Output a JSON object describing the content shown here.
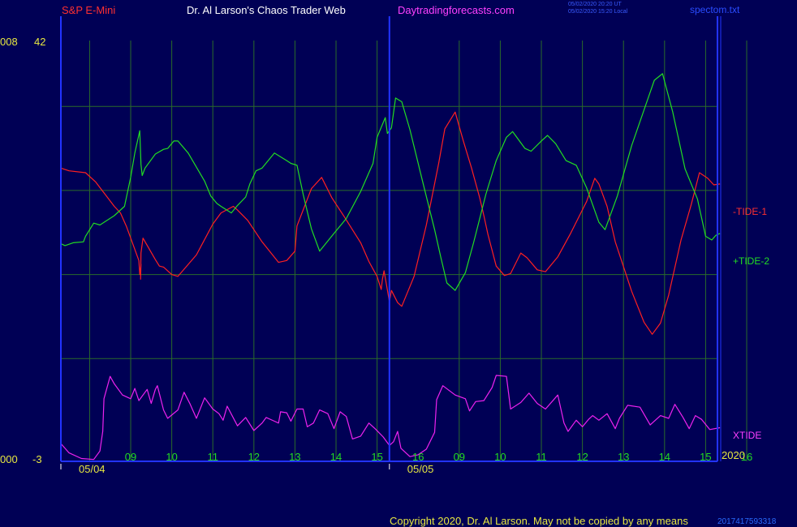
{
  "header": {
    "instrument": "S&P E-Mini",
    "site": "Dr. Al Larson's Chaos Trader Web",
    "url": "Daytradingforecasts.com",
    "timestamp_ut": "05/02/2020 20:20 UT",
    "timestamp_local": "05/02/2020 15:20 Local",
    "file": "spectom.txt"
  },
  "left_axis": {
    "top_code": "008",
    "top_value": "42",
    "bottom_code": "000",
    "bottom_value": "-3"
  },
  "footer": {
    "year": "2020",
    "copyright": "Copyright 2020, Dr. Al Larson. May not be copied by any means",
    "overflow_text": "2017417593318"
  },
  "colors": {
    "background": "#000055",
    "frame": "#2233ff",
    "grid": "#2a6b2a",
    "tide1": "#ff2020",
    "tide2": "#22dd22",
    "xtide": "#ee22ee",
    "label_yellow": "#e8e840",
    "label_red": "#ff3030",
    "label_magenta": "#ff40ff"
  },
  "chart_data": {
    "type": "line",
    "x_tick_labels": [
      {
        "x": 1,
        "label": "09"
      },
      {
        "x": 2,
        "label": "10"
      },
      {
        "x": 3,
        "label": "11"
      },
      {
        "x": 4,
        "label": "12"
      },
      {
        "x": 5,
        "label": "13"
      },
      {
        "x": 6,
        "label": "14"
      },
      {
        "x": 7,
        "label": "15"
      },
      {
        "x": 8,
        "label": "16"
      },
      {
        "x": 9,
        "label": "09"
      },
      {
        "x": 10,
        "label": "10"
      },
      {
        "x": 11,
        "label": "11"
      },
      {
        "x": 12,
        "label": "12"
      },
      {
        "x": 13,
        "label": "13"
      },
      {
        "x": 14,
        "label": "14"
      },
      {
        "x": 15,
        "label": "15"
      },
      {
        "x": 16,
        "label": "16"
      }
    ],
    "date_labels": [
      {
        "x": 0,
        "label": "05/04"
      },
      {
        "x": 8,
        "label": "05/05"
      }
    ],
    "xlim": [
      0,
      16.1
    ],
    "ylim": [
      -3,
      42
    ],
    "grid": true,
    "series": [
      {
        "name": "-TIDE-1",
        "color": "#ff2020",
        "points": [
          [
            0,
            28.4
          ],
          [
            0.2,
            28.1
          ],
          [
            0.6,
            27.9
          ],
          [
            0.85,
            26.9
          ],
          [
            1.3,
            24.3
          ],
          [
            1.45,
            23.6
          ],
          [
            1.6,
            22.1
          ],
          [
            1.9,
            18.5
          ],
          [
            1.92,
            17
          ],
          [
            1.95,
            18.1
          ],
          [
            1.94,
            16.5
          ],
          [
            1.95,
            19.3
          ],
          [
            2,
            20.9
          ],
          [
            2.3,
            18.6
          ],
          [
            2.4,
            17.9
          ],
          [
            2.5,
            17.8
          ],
          [
            2.7,
            17
          ],
          [
            2.85,
            16.8
          ],
          [
            3.3,
            19.1
          ],
          [
            3.7,
            22.4
          ],
          [
            3.9,
            23.6
          ],
          [
            4.2,
            24.3
          ],
          [
            4.3,
            23.9
          ],
          [
            4.55,
            22.8
          ],
          [
            4.9,
            20.5
          ],
          [
            5.3,
            18.3
          ],
          [
            5.5,
            18.5
          ],
          [
            5.7,
            19.5
          ],
          [
            5.75,
            22.2
          ],
          [
            6.1,
            26.2
          ],
          [
            6.35,
            27.4
          ],
          [
            6.6,
            25.2
          ],
          [
            6.9,
            23.2
          ],
          [
            7.3,
            20.4
          ],
          [
            7.5,
            18.4
          ],
          [
            7.7,
            16.8
          ],
          [
            7.8,
            15.4
          ],
          [
            7.83,
            16.5
          ],
          [
            7.87,
            17.4
          ],
          [
            8,
            14.1
          ],
          [
            8.05,
            15.3
          ],
          [
            8.2,
            14
          ],
          [
            8.3,
            13.6
          ],
          [
            8.6,
            16.8
          ],
          [
            8.9,
            22.3
          ],
          [
            9.2,
            28.9
          ],
          [
            9.35,
            32.6
          ],
          [
            9.6,
            34.4
          ],
          [
            9.8,
            31.3
          ],
          [
            10,
            28.4
          ],
          [
            10.2,
            25.2
          ],
          [
            10.3,
            23.3
          ],
          [
            10.4,
            21.3
          ],
          [
            10.6,
            17.9
          ],
          [
            10.8,
            16.9
          ],
          [
            10.95,
            17.1
          ],
          [
            11.2,
            19.3
          ],
          [
            11.35,
            18.8
          ],
          [
            11.6,
            17.5
          ],
          [
            11.8,
            17.3
          ],
          [
            12.1,
            18.9
          ],
          [
            12.4,
            21.3
          ],
          [
            12.8,
            24.8
          ],
          [
            13,
            27.3
          ],
          [
            13.1,
            26.7
          ],
          [
            13.3,
            24.3
          ],
          [
            13.5,
            20.5
          ],
          [
            13.9,
            15.2
          ],
          [
            14.2,
            11.9
          ],
          [
            14.4,
            10.6
          ],
          [
            14.6,
            11.8
          ],
          [
            14.8,
            14.8
          ],
          [
            15.1,
            20.7
          ],
          [
            15.35,
            24.5
          ],
          [
            15.55,
            27.9
          ],
          [
            15.75,
            27.3
          ],
          [
            15.9,
            26.6
          ],
          [
            16.05,
            26.7
          ]
        ]
      },
      {
        "name": "+TIDE-2",
        "color": "#22dd22",
        "points": [
          [
            0,
            20.3
          ],
          [
            0.1,
            20.1
          ],
          [
            0.3,
            20.4
          ],
          [
            0.55,
            20.5
          ],
          [
            0.6,
            21.1
          ],
          [
            0.8,
            22.5
          ],
          [
            0.95,
            22.3
          ],
          [
            1.3,
            23.3
          ],
          [
            1.55,
            24.3
          ],
          [
            1.7,
            27.4
          ],
          [
            1.8,
            30
          ],
          [
            1.92,
            32.4
          ],
          [
            1.95,
            28.8
          ],
          [
            1.98,
            27.6
          ],
          [
            2.05,
            28.4
          ],
          [
            2.3,
            29.9
          ],
          [
            2.5,
            30.4
          ],
          [
            2.6,
            30.5
          ],
          [
            2.75,
            31.3
          ],
          [
            2.85,
            31.3
          ],
          [
            3.1,
            30
          ],
          [
            3.5,
            27
          ],
          [
            3.65,
            25.4
          ],
          [
            3.8,
            24.6
          ],
          [
            3.9,
            24.3
          ],
          [
            4.15,
            23.6
          ],
          [
            4.3,
            24.4
          ],
          [
            4.5,
            25.3
          ],
          [
            4.6,
            26.7
          ],
          [
            4.75,
            28.1
          ],
          [
            4.9,
            28.4
          ],
          [
            5.2,
            30
          ],
          [
            5.5,
            29.2
          ],
          [
            5.6,
            28.9
          ],
          [
            5.75,
            28.7
          ],
          [
            5.9,
            25.6
          ],
          [
            6.1,
            21.9
          ],
          [
            6.3,
            19.5
          ],
          [
            6.65,
            21.4
          ],
          [
            6.95,
            23
          ],
          [
            7.3,
            25.9
          ],
          [
            7.6,
            28.9
          ],
          [
            7.7,
            31.7
          ],
          [
            7.9,
            33.8
          ],
          [
            7.95,
            32.1
          ],
          [
            8.05,
            32.7
          ],
          [
            8.15,
            35.9
          ],
          [
            8.3,
            35.5
          ],
          [
            8.5,
            32.5
          ],
          [
            8.8,
            27.1
          ],
          [
            9.1,
            21.8
          ],
          [
            9.25,
            18.9
          ],
          [
            9.4,
            16.1
          ],
          [
            9.6,
            15.3
          ],
          [
            9.85,
            17.2
          ],
          [
            10.05,
            20.4
          ],
          [
            10.35,
            25.6
          ],
          [
            10.6,
            29.2
          ],
          [
            10.85,
            31.7
          ],
          [
            11,
            32.3
          ],
          [
            11.3,
            30.5
          ],
          [
            11.45,
            30.2
          ],
          [
            11.7,
            31.3
          ],
          [
            11.85,
            31.9
          ],
          [
            12.05,
            31
          ],
          [
            12.3,
            29.2
          ],
          [
            12.55,
            28.7
          ],
          [
            12.8,
            26.3
          ],
          [
            13.1,
            22.6
          ],
          [
            13.25,
            21.8
          ],
          [
            13.55,
            25.4
          ],
          [
            13.9,
            30.8
          ],
          [
            14.3,
            35.9
          ],
          [
            14.45,
            37.8
          ],
          [
            14.65,
            38.5
          ],
          [
            14.9,
            34.4
          ],
          [
            15.2,
            28.3
          ],
          [
            15.5,
            25.1
          ],
          [
            15.7,
            21.1
          ],
          [
            15.85,
            20.7
          ],
          [
            15.95,
            21.2
          ],
          [
            16.05,
            21.4
          ]
        ]
      },
      {
        "name": "XTIDE",
        "color": "#ee22ee",
        "points": [
          [
            0,
            -1.1
          ],
          [
            0.2,
            -2.1
          ],
          [
            0.5,
            -2.7
          ],
          [
            0.8,
            -2.8
          ],
          [
            0.95,
            -1.9
          ],
          [
            1.02,
            0.2
          ],
          [
            1.05,
            3.7
          ],
          [
            1.2,
            6.1
          ],
          [
            1.3,
            5.3
          ],
          [
            1.5,
            4.1
          ],
          [
            1.7,
            3.7
          ],
          [
            1.8,
            4.8
          ],
          [
            1.9,
            3.5
          ],
          [
            2.1,
            4.7
          ],
          [
            2.2,
            3.2
          ],
          [
            2.3,
            4.7
          ],
          [
            2.35,
            5.1
          ],
          [
            2.5,
            2.5
          ],
          [
            2.6,
            1.6
          ],
          [
            2.85,
            2.5
          ],
          [
            3,
            4.4
          ],
          [
            3.15,
            3.1
          ],
          [
            3.3,
            1.6
          ],
          [
            3.5,
            3.8
          ],
          [
            3.7,
            2.6
          ],
          [
            3.85,
            2.1
          ],
          [
            3.95,
            1.4
          ],
          [
            4.05,
            2.9
          ],
          [
            4.3,
            0.8
          ],
          [
            4.5,
            1.7
          ],
          [
            4.7,
            0.3
          ],
          [
            4.9,
            1.1
          ],
          [
            5,
            1.7
          ],
          [
            5.2,
            1.3
          ],
          [
            5.3,
            1.1
          ],
          [
            5.35,
            2.3
          ],
          [
            5.5,
            2.2
          ],
          [
            5.6,
            1.3
          ],
          [
            5.75,
            2.6
          ],
          [
            5.9,
            2.6
          ],
          [
            6,
            0.7
          ],
          [
            6.15,
            1.1
          ],
          [
            6.3,
            2.5
          ],
          [
            6.5,
            2.1
          ],
          [
            6.65,
            0.5
          ],
          [
            6.8,
            2.3
          ],
          [
            6.95,
            1.8
          ],
          [
            7.1,
            -0.6
          ],
          [
            7.3,
            -0.3
          ],
          [
            7.5,
            1.1
          ],
          [
            7.65,
            0.5
          ],
          [
            7.85,
            -0.4
          ],
          [
            8,
            -1.3
          ],
          [
            8.1,
            -0.9
          ],
          [
            8.2,
            0.2
          ],
          [
            8.28,
            -1.6
          ],
          [
            8.5,
            -2.5
          ],
          [
            8.7,
            -2.3
          ],
          [
            8.9,
            -1.7
          ],
          [
            9.1,
            0.1
          ],
          [
            9.15,
            3.6
          ],
          [
            9.3,
            5.1
          ],
          [
            9.6,
            4.1
          ],
          [
            9.85,
            3.7
          ],
          [
            9.95,
            2.4
          ],
          [
            10.1,
            3.4
          ],
          [
            10.3,
            3.5
          ],
          [
            10.5,
            4.9
          ],
          [
            10.6,
            6.2
          ],
          [
            10.85,
            6.1
          ],
          [
            10.95,
            2.6
          ],
          [
            11.2,
            3.3
          ],
          [
            11.4,
            4.3
          ],
          [
            11.6,
            3.2
          ],
          [
            11.8,
            2.6
          ],
          [
            12.1,
            4.1
          ],
          [
            12.25,
            1.1
          ],
          [
            12.35,
            0.2
          ],
          [
            12.55,
            1.4
          ],
          [
            12.7,
            0.7
          ],
          [
            12.85,
            1.5
          ],
          [
            12.95,
            1.9
          ],
          [
            13.1,
            1.4
          ],
          [
            13.3,
            2.1
          ],
          [
            13.5,
            0.5
          ],
          [
            13.6,
            1.6
          ],
          [
            13.8,
            3
          ],
          [
            14.1,
            2.8
          ],
          [
            14.35,
            0.9
          ],
          [
            14.6,
            1.9
          ],
          [
            14.8,
            1.6
          ],
          [
            14.95,
            3.1
          ],
          [
            15.15,
            1.7
          ],
          [
            15.3,
            0.5
          ],
          [
            15.45,
            1.9
          ],
          [
            15.6,
            1.5
          ],
          [
            15.8,
            0.4
          ],
          [
            16.05,
            0.6
          ]
        ]
      }
    ]
  }
}
